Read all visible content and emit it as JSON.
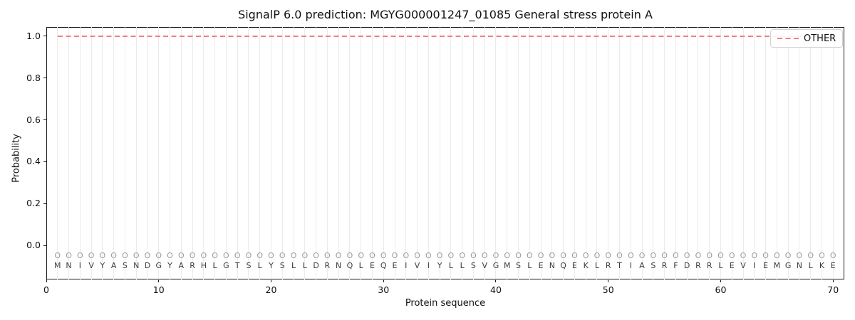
{
  "figure_title": "SignalP 6.0 prediction: MGYG000001247_01085 General stress protein A",
  "chart_data": {
    "type": "line",
    "title": "SignalP 6.0 prediction: MGYG000001247_01085 General stress protein A",
    "xlabel": "Protein sequence",
    "ylabel": "Probability",
    "xlim": [
      0,
      71
    ],
    "ylim": [
      -0.163,
      1.044
    ],
    "xticks": [
      0,
      10,
      20,
      30,
      40,
      50,
      60,
      70
    ],
    "ytick_labels": [
      "0.0",
      "0.2",
      "0.4",
      "0.6",
      "0.8",
      "1.0"
    ],
    "grid": "vertical line at every residue position 1-70",
    "legend_position": "upper-right",
    "sequence": "MNIVYASNDGYARHLGTSLYSLLDRNQLEQEIVIYLLSVGMSLENQEKLRTIASRFDRRLEVIEMGNLKE",
    "predicted_labels": "OOOOOOOOOOOOOOOOOOOOOOOOOOOOOOOOOOOOOOOOOOOOOOOOOOOOOOOOOOOOOOOOOOOOOO",
    "series": [
      {
        "name": "OTHER",
        "color": "#f08080",
        "linestyle": "dashed",
        "x_start": 1,
        "x_end": 70,
        "values": [
          1.0,
          1.0,
          1.0,
          1.0,
          1.0,
          1.0,
          1.0,
          1.0,
          1.0,
          1.0,
          1.0,
          1.0,
          1.0,
          1.0,
          1.0,
          1.0,
          1.0,
          1.0,
          1.0,
          1.0,
          1.0,
          1.0,
          1.0,
          1.0,
          1.0,
          1.0,
          1.0,
          1.0,
          1.0,
          1.0,
          1.0,
          1.0,
          1.0,
          1.0,
          1.0,
          1.0,
          1.0,
          1.0,
          1.0,
          1.0,
          1.0,
          1.0,
          1.0,
          1.0,
          1.0,
          1.0,
          1.0,
          1.0,
          1.0,
          1.0,
          1.0,
          1.0,
          1.0,
          1.0,
          1.0,
          1.0,
          1.0,
          1.0,
          1.0,
          1.0,
          1.0,
          1.0,
          1.0,
          1.0,
          1.0,
          1.0,
          1.0,
          1.0,
          1.0,
          1.0
        ]
      }
    ],
    "colors": {
      "other_line": "#f08080",
      "gridline": "#ebebeb",
      "sequence_letter": "#3d3d3d",
      "predicted_label": "#9b9b9b",
      "spine": "#1a1a1a"
    }
  },
  "legend": {
    "entries": [
      {
        "label": "OTHER"
      }
    ]
  }
}
